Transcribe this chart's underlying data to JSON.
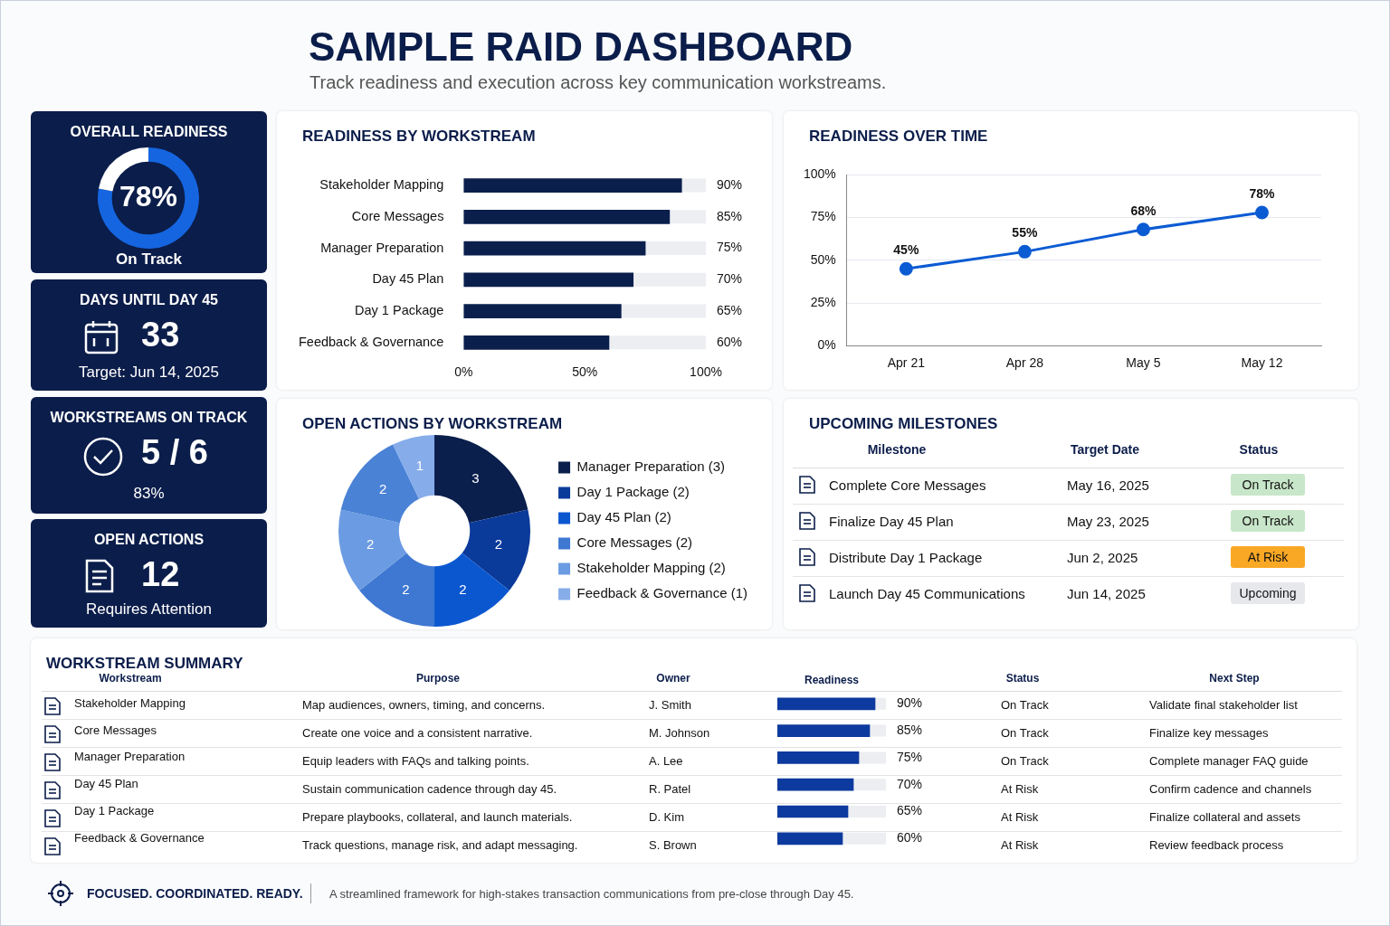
{
  "chart_data": [
    {
      "type": "other",
      "title": "SAMPLE RAID DASHBOARD",
      "subtitle": "Track readiness and execution across key communication workstreams.",
      "annotations": [
        "FOCUSED. COORDINATED. READY.",
        "A streamlined framework for high-stakes transaction communications from pre-close through Day 45."
      ]
    },
    {
      "type": "donut",
      "title": "OVERALL READINESS",
      "categories": [
        null,
        null
      ],
      "values": [
        78,
        22
      ],
      "colors": [
        "#1565e0",
        "#ffffff"
      ],
      "value_labels": [
        "78%",
        null
      ],
      "annotations": [
        "On Track"
      ]
    },
    {
      "type": "other",
      "title": "DAYS UNTIL DAY 45",
      "annotations": [
        "33",
        "Target: Jun 14, 2025"
      ]
    },
    {
      "type": "other",
      "title": "WORKSTREAMS ON TRACK",
      "annotations": [
        "5 / 6",
        "83%"
      ]
    },
    {
      "type": "other",
      "title": "OPEN ACTIONS",
      "annotations": [
        "12",
        "Requires Attention"
      ]
    },
    {
      "type": "bar",
      "orientation": "horizontal",
      "title": "READINESS BY WORKSTREAM",
      "categories": [
        "Stakeholder Mapping",
        "Core Messages",
        "Manager Preparation",
        "Day 45 Plan",
        "Day 1 Package",
        "Feedback & Governance"
      ],
      "values": [
        90,
        85,
        75,
        70,
        65,
        60
      ],
      "color": "#0b1f4d",
      "value_labels": [
        "90%",
        "85%",
        "75%",
        "70%",
        "65%",
        "60%"
      ],
      "xlim": [
        0,
        100
      ],
      "xticks": [
        {
          "value": 0,
          "label": "0%"
        },
        {
          "value": 50,
          "label": "50%"
        },
        {
          "value": 100,
          "label": "100%"
        }
      ]
    },
    {
      "type": "line",
      "title": "READINESS OVER TIME",
      "categories": [
        "Apr 21",
        "Apr 28",
        "May 5",
        "May 12"
      ],
      "values": [
        45,
        55,
        68,
        78
      ],
      "color": "#0b5bd3",
      "value_labels": [
        "45%",
        "55%",
        "68%",
        "78%"
      ],
      "ylim": [
        0,
        100
      ],
      "yticks": [
        {
          "value": 0,
          "label": "0%"
        },
        {
          "value": 25,
          "label": "25%"
        },
        {
          "value": 50,
          "label": "50%"
        },
        {
          "value": 75,
          "label": "75%"
        },
        {
          "value": 100,
          "label": "100%"
        }
      ],
      "grid": "y",
      "marker": "circle"
    },
    {
      "type": "donut",
      "title": "OPEN ACTIONS BY WORKSTREAM",
      "categories": [
        "Manager Preparation (3)",
        "Day 1 Package (2)",
        "Day 45 Plan (2)",
        "Core Messages (2)",
        "Stakeholder Mapping (2)",
        null,
        "Feedback & Governance (1)"
      ],
      "values": [
        3,
        2,
        2,
        2,
        2,
        2,
        1
      ],
      "colors": [
        "#0b1f4d",
        "#0a3a9a",
        "#0b57d0",
        "#3f78d2",
        "#6b9be2",
        "#4a82d6",
        "#86acea"
      ],
      "data_labels": true,
      "legend": "right"
    },
    {
      "type": "other",
      "title": "UPCOMING MILESTONES",
      "annotations": [
        "Milestone",
        "Target Date",
        "Status",
        "Complete Core Messages",
        "May 16, 2025",
        "On Track",
        "Finalize Day 45 Plan",
        "May 23, 2025",
        "On Track",
        "Distribute Day 1 Package",
        "Jun 2, 2025",
        "At Risk",
        "Launch Day 45 Communications",
        "Jun 14, 2025",
        "Upcoming"
      ],
      "colors": [
        "#c8e6c9",
        "#c8e6c9",
        "#f9a825",
        "#e6e8ec"
      ]
    },
    {
      "type": "bar",
      "orientation": "horizontal",
      "title": "WORKSTREAM SUMMARY",
      "xlabel": "Readiness",
      "categories": [
        "Stakeholder Mapping",
        "Core Messages",
        "Manager Preparation",
        "Day 45 Plan",
        "Day 1 Package",
        "Feedback & Governance"
      ],
      "values": [
        90,
        85,
        75,
        70,
        65,
        60
      ],
      "color": "#0d3a9e",
      "value_labels": [
        "90%",
        "85%",
        "75%",
        "70%",
        "65%",
        "60%"
      ],
      "xlim": [
        0,
        100
      ],
      "tick_labels": "y",
      "annotations": [
        "Workstream",
        "Purpose",
        "Owner",
        "Status",
        "Next Step",
        "Map audiences, owners, timing, and concerns.",
        "J. Smith",
        "On Track",
        "Validate final stakeholder list",
        "Create one voice and a consistent narrative.",
        "M. Johnson",
        "On Track",
        "Finalize key messages",
        "Equip leaders with FAQs and talking points.",
        "A. Lee",
        "On Track",
        "Complete manager FAQ guide",
        "Sustain communication cadence through day 45.",
        "R. Patel",
        "At Risk",
        "Confirm cadence and channels",
        "Prepare playbooks, collateral, and launch materials.",
        "D. Kim",
        "At Risk",
        "Finalize collateral and assets",
        "Track questions, manage risk, and adapt messaging.",
        "S. Brown",
        "At Risk",
        "Review feedback process"
      ]
    }
  ]
}
